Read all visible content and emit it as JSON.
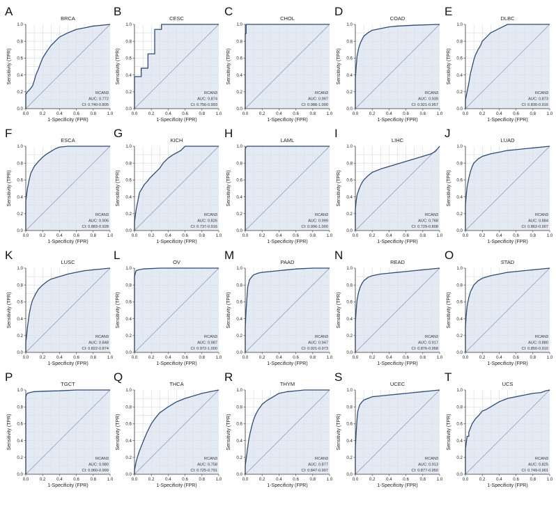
{
  "figure": {
    "x_label": "1-Specificity (FPR)",
    "y_label": "Sensitivity (TPR)",
    "gene": "RCAN3",
    "colors": {
      "fill": "#d9e2ee",
      "curve": "#2d4b73",
      "diagonal": "#9aaabd",
      "grid": "#c3cdd9",
      "axis": "#333333"
    }
  },
  "chart_data": [
    {
      "letter": "A",
      "title": "BRCA",
      "type": "line",
      "xlabel": "1-Specificity (FPR)",
      "ylabel": "Sensitivity (TPR)",
      "xlim": [
        0,
        1
      ],
      "ylim": [
        0,
        1
      ],
      "legend_label": "RCAN3",
      "auc": "AUC: 0.772",
      "ci": "CI: 0.740-0.805",
      "x": [
        0,
        0,
        0.02,
        0.05,
        0.08,
        0.1,
        0.12,
        0.15,
        0.18,
        0.2,
        0.25,
        0.3,
        0.35,
        0.4,
        0.5,
        0.6,
        0.7,
        0.8,
        0.9,
        1
      ],
      "y": [
        0,
        0.17,
        0.2,
        0.23,
        0.27,
        0.33,
        0.4,
        0.47,
        0.55,
        0.6,
        0.68,
        0.75,
        0.8,
        0.85,
        0.9,
        0.94,
        0.96,
        0.98,
        0.99,
        1
      ]
    },
    {
      "letter": "B",
      "title": "CESC",
      "type": "line",
      "xlabel": "1-Specificity (FPR)",
      "ylabel": "Sensitivity (TPR)",
      "xlim": [
        0,
        1
      ],
      "ylim": [
        0,
        1
      ],
      "legend_label": "RCAN3",
      "auc": "AUC: 0.874",
      "ci": "CI: 0.756-0.993",
      "x": [
        0,
        0,
        0.08,
        0.08,
        0.16,
        0.16,
        0.24,
        0.24,
        0.32,
        0.32,
        1
      ],
      "y": [
        0,
        0.38,
        0.38,
        0.48,
        0.48,
        0.65,
        0.65,
        0.94,
        0.94,
        1,
        1
      ]
    },
    {
      "letter": "C",
      "title": "CHOL",
      "type": "line",
      "xlabel": "1-Specificity (FPR)",
      "ylabel": "Sensitivity (TPR)",
      "xlim": [
        0,
        1
      ],
      "ylim": [
        0,
        1
      ],
      "legend_label": "RCAN3",
      "auc": "AUC: 0.997",
      "ci": "CI: 0.988-1.000",
      "x": [
        0,
        0,
        0.01,
        0.01,
        1
      ],
      "y": [
        0,
        0.89,
        0.89,
        1,
        1
      ]
    },
    {
      "letter": "D",
      "title": "COAD",
      "type": "line",
      "xlabel": "1-Specificity (FPR)",
      "ylabel": "Sensitivity (TPR)",
      "xlim": [
        0,
        1
      ],
      "ylim": [
        0,
        1
      ],
      "legend_label": "RCAN3",
      "auc": "AUC: 0.939",
      "ci": "CI: 0.921-0.957",
      "x": [
        0,
        0,
        0.01,
        0.02,
        0.04,
        0.06,
        0.08,
        0.1,
        0.15,
        0.2,
        0.3,
        0.4,
        0.5,
        0.7,
        1
      ],
      "y": [
        0,
        0.35,
        0.5,
        0.62,
        0.72,
        0.78,
        0.82,
        0.86,
        0.9,
        0.93,
        0.95,
        0.97,
        0.98,
        0.99,
        1
      ]
    },
    {
      "letter": "E",
      "title": "DLBC",
      "type": "line",
      "xlabel": "1-Specificity (FPR)",
      "ylabel": "Sensitivity (TPR)",
      "xlim": [
        0,
        1
      ],
      "ylim": [
        0,
        1
      ],
      "legend_label": "RCAN3",
      "auc": "AUC: 0.873",
      "ci": "CI: 0.830-0.916",
      "x": [
        0,
        0,
        0.02,
        0.04,
        0.06,
        0.08,
        0.1,
        0.12,
        0.15,
        0.18,
        0.2,
        0.25,
        0.3,
        0.4,
        0.5,
        0.6,
        0.8,
        1
      ],
      "y": [
        0,
        0.1,
        0.2,
        0.3,
        0.42,
        0.5,
        0.58,
        0.64,
        0.7,
        0.75,
        0.8,
        0.85,
        0.9,
        0.95,
        1,
        1,
        1,
        1
      ]
    },
    {
      "letter": "F",
      "title": "ESCA",
      "type": "line",
      "xlabel": "1-Specificity (FPR)",
      "ylabel": "Sensitivity (TPR)",
      "xlim": [
        0,
        1
      ],
      "ylim": [
        0,
        1
      ],
      "legend_label": "RCAN3",
      "auc": "AUC: 0.906",
      "ci": "CI: 0.883-0.928",
      "x": [
        0,
        0,
        0.02,
        0.04,
        0.06,
        0.08,
        0.1,
        0.15,
        0.2,
        0.25,
        0.3,
        0.35,
        0.4,
        0.5,
        0.7,
        1
      ],
      "y": [
        0,
        0.35,
        0.5,
        0.6,
        0.68,
        0.72,
        0.76,
        0.82,
        0.87,
        0.91,
        0.94,
        0.97,
        0.99,
        1,
        1,
        1
      ]
    },
    {
      "letter": "G",
      "title": "KICH",
      "type": "line",
      "xlabel": "1-Specificity (FPR)",
      "ylabel": "Sensitivity (TPR)",
      "xlim": [
        0,
        1
      ],
      "ylim": [
        0,
        1
      ],
      "legend_label": "RCAN3",
      "auc": "AUC: 0.826",
      "ci": "CI: 0.737-0.916",
      "x": [
        0,
        0,
        0.02,
        0.04,
        0.06,
        0.09,
        0.12,
        0.15,
        0.18,
        0.22,
        0.26,
        0.3,
        0.34,
        0.4,
        0.46,
        0.55,
        0.6,
        0.7,
        1
      ],
      "y": [
        0,
        0.1,
        0.25,
        0.35,
        0.45,
        0.5,
        0.55,
        0.58,
        0.62,
        0.66,
        0.7,
        0.74,
        0.8,
        0.86,
        0.9,
        0.95,
        1,
        1,
        1
      ]
    },
    {
      "letter": "H",
      "title": "LAML",
      "type": "line",
      "xlabel": "1-Specificity (FPR)",
      "ylabel": "Sensitivity (TPR)",
      "xlim": [
        0,
        1
      ],
      "ylim": [
        0,
        1
      ],
      "legend_label": "RCAN3",
      "auc": "AUC: 0.999",
      "ci": "CI: 0.996-1.000",
      "x": [
        0,
        0,
        0.01,
        0.02,
        1
      ],
      "y": [
        0,
        0.97,
        0.99,
        1,
        1
      ]
    },
    {
      "letter": "I",
      "title": "LIHC",
      "type": "line",
      "xlabel": "1-Specificity (FPR)",
      "ylabel": "Sensitivity (TPR)",
      "xlim": [
        0,
        1
      ],
      "ylim": [
        0,
        1
      ],
      "legend_label": "RCAN3",
      "auc": "AUC: 0.768",
      "ci": "CI: 0.729-0.808",
      "x": [
        0,
        0,
        0.01,
        0.02,
        0.04,
        0.06,
        0.08,
        0.1,
        0.15,
        0.2,
        0.3,
        0.4,
        0.5,
        0.6,
        0.7,
        0.8,
        0.9,
        0.95,
        1
      ],
      "y": [
        0,
        0.25,
        0.35,
        0.42,
        0.48,
        0.53,
        0.57,
        0.6,
        0.65,
        0.69,
        0.73,
        0.76,
        0.79,
        0.82,
        0.85,
        0.88,
        0.91,
        0.94,
        1
      ]
    },
    {
      "letter": "J",
      "title": "LUAD",
      "type": "line",
      "xlabel": "1-Specificity (FPR)",
      "ylabel": "Sensitivity (TPR)",
      "xlim": [
        0,
        1
      ],
      "ylim": [
        0,
        1
      ],
      "legend_label": "RCAN3",
      "auc": "AUC: 0.884",
      "ci": "CI: 0.862-0.907",
      "x": [
        0,
        0,
        0.01,
        0.02,
        0.04,
        0.06,
        0.08,
        0.1,
        0.15,
        0.2,
        0.3,
        0.4,
        0.5,
        0.6,
        0.7,
        0.8,
        1
      ],
      "y": [
        0,
        0.3,
        0.42,
        0.52,
        0.62,
        0.7,
        0.76,
        0.8,
        0.85,
        0.88,
        0.91,
        0.93,
        0.95,
        0.96,
        0.97,
        0.98,
        1
      ]
    },
    {
      "letter": "K",
      "title": "LUSC",
      "type": "line",
      "xlabel": "1-Specificity (FPR)",
      "ylabel": "Sensitivity (TPR)",
      "xlim": [
        0,
        1
      ],
      "ylim": [
        0,
        1
      ],
      "legend_label": "RCAN3",
      "auc": "AUC: 0.848",
      "ci": "CI: 0.822-0.874",
      "x": [
        0,
        0,
        0.01,
        0.02,
        0.04,
        0.06,
        0.08,
        0.1,
        0.12,
        0.15,
        0.2,
        0.25,
        0.3,
        0.4,
        0.5,
        0.6,
        0.7,
        0.8,
        0.9,
        1
      ],
      "y": [
        0,
        0.12,
        0.2,
        0.3,
        0.45,
        0.55,
        0.62,
        0.66,
        0.7,
        0.75,
        0.8,
        0.84,
        0.87,
        0.9,
        0.93,
        0.95,
        0.97,
        0.98,
        0.99,
        1
      ]
    },
    {
      "letter": "L",
      "title": "OV",
      "type": "line",
      "xlabel": "1-Specificity (FPR)",
      "ylabel": "Sensitivity (TPR)",
      "xlim": [
        0,
        1
      ],
      "ylim": [
        0,
        1
      ],
      "legend_label": "RCAN3",
      "auc": "AUC: 0.987",
      "ci": "CI: 0.972-1.000",
      "x": [
        0,
        0,
        0.01,
        0.02,
        0.05,
        0.1,
        0.3,
        1
      ],
      "y": [
        0,
        0.9,
        0.94,
        0.97,
        0.98,
        0.99,
        1,
        1
      ]
    },
    {
      "letter": "M",
      "title": "PAAD",
      "type": "line",
      "xlabel": "1-Specificity (FPR)",
      "ylabel": "Sensitivity (TPR)",
      "xlim": [
        0,
        1
      ],
      "ylim": [
        0,
        1
      ],
      "legend_label": "RCAN3",
      "auc": "AUC: 0.947",
      "ci": "CI: 0.921-0.973",
      "x": [
        0,
        0,
        0.01,
        0.02,
        0.03,
        0.05,
        0.08,
        0.1,
        0.15,
        0.2,
        0.3,
        0.4,
        0.5,
        0.6,
        0.8,
        1
      ],
      "y": [
        0,
        0.3,
        0.5,
        0.65,
        0.78,
        0.86,
        0.9,
        0.92,
        0.94,
        0.95,
        0.96,
        0.97,
        0.98,
        0.99,
        1,
        1
      ]
    },
    {
      "letter": "N",
      "title": "READ",
      "type": "line",
      "xlabel": "1-Specificity (FPR)",
      "ylabel": "Sensitivity (TPR)",
      "xlim": [
        0,
        1
      ],
      "ylim": [
        0,
        1
      ],
      "legend_label": "RCAN3",
      "auc": "AUC: 0.917",
      "ci": "CI: 0.876-0.958",
      "x": [
        0,
        0,
        0.01,
        0.02,
        0.04,
        0.06,
        0.08,
        0.1,
        0.15,
        0.2,
        0.3,
        0.4,
        0.5,
        0.6,
        0.7,
        0.8,
        0.9,
        1
      ],
      "y": [
        0,
        0.35,
        0.5,
        0.62,
        0.72,
        0.78,
        0.82,
        0.85,
        0.89,
        0.91,
        0.93,
        0.94,
        0.95,
        0.96,
        0.97,
        0.98,
        0.99,
        1
      ]
    },
    {
      "letter": "O",
      "title": "STAD",
      "type": "line",
      "xlabel": "1-Specificity (FPR)",
      "ylabel": "Sensitivity (TPR)",
      "xlim": [
        0,
        1
      ],
      "ylim": [
        0,
        1
      ],
      "legend_label": "RCAN3",
      "auc": "AUC: 0.880",
      "ci": "CI: 0.850-0.910",
      "x": [
        0,
        0,
        0.01,
        0.02,
        0.04,
        0.06,
        0.08,
        0.1,
        0.15,
        0.2,
        0.3,
        0.4,
        0.5,
        0.6,
        0.7,
        0.8,
        0.9,
        1
      ],
      "y": [
        0,
        0.3,
        0.45,
        0.55,
        0.65,
        0.72,
        0.76,
        0.8,
        0.85,
        0.88,
        0.91,
        0.93,
        0.95,
        0.96,
        0.97,
        0.98,
        0.99,
        1
      ]
    },
    {
      "letter": "P",
      "title": "TGCT",
      "type": "line",
      "xlabel": "1-Specificity (FPR)",
      "ylabel": "Sensitivity (TPR)",
      "xlim": [
        0,
        1
      ],
      "ylim": [
        0,
        1
      ],
      "legend_label": "RCAN3",
      "auc": "AUC: 0.980",
      "ci": "CI: 0.960-0.999",
      "x": [
        0,
        0,
        0.01,
        0.02,
        0.05,
        0.1,
        0.2,
        0.4,
        0.6,
        1
      ],
      "y": [
        0,
        0.92,
        0.95,
        0.96,
        0.97,
        0.98,
        0.985,
        0.99,
        1,
        1
      ]
    },
    {
      "letter": "Q",
      "title": "THCA",
      "type": "line",
      "xlabel": "1-Specificity (FPR)",
      "ylabel": "Sensitivity (TPR)",
      "xlim": [
        0,
        1
      ],
      "ylim": [
        0,
        1
      ],
      "legend_label": "RCAN3",
      "auc": "AUC: 0.758",
      "ci": "CI: 0.725-0.791",
      "x": [
        0,
        0,
        0.01,
        0.02,
        0.04,
        0.06,
        0.08,
        0.1,
        0.12,
        0.15,
        0.2,
        0.25,
        0.3,
        0.4,
        0.5,
        0.6,
        0.7,
        0.8,
        0.9,
        1
      ],
      "y": [
        0,
        0.05,
        0.1,
        0.15,
        0.22,
        0.28,
        0.33,
        0.38,
        0.43,
        0.5,
        0.6,
        0.67,
        0.73,
        0.8,
        0.86,
        0.9,
        0.93,
        0.96,
        0.98,
        1
      ]
    },
    {
      "letter": "R",
      "title": "THYM",
      "type": "line",
      "xlabel": "1-Specificity (FPR)",
      "ylabel": "Sensitivity (TPR)",
      "xlim": [
        0,
        1
      ],
      "ylim": [
        0,
        1
      ],
      "legend_label": "RCAN3",
      "auc": "AUC: 0.877",
      "ci": "CI: 0.847-0.907",
      "x": [
        0,
        0,
        0.02,
        0.04,
        0.06,
        0.08,
        0.1,
        0.12,
        0.15,
        0.18,
        0.2,
        0.25,
        0.3,
        0.35,
        0.4,
        0.5,
        0.6,
        0.7,
        1
      ],
      "y": [
        0,
        0.1,
        0.25,
        0.4,
        0.5,
        0.58,
        0.65,
        0.7,
        0.76,
        0.8,
        0.83,
        0.87,
        0.9,
        0.93,
        0.96,
        0.98,
        0.99,
        1,
        1
      ]
    },
    {
      "letter": "S",
      "title": "UCEC",
      "type": "line",
      "xlabel": "1-Specificity (FPR)",
      "ylabel": "Sensitivity (TPR)",
      "xlim": [
        0,
        1
      ],
      "ylim": [
        0,
        1
      ],
      "legend_label": "RCAN3",
      "auc": "AUC: 0.913",
      "ci": "CI: 0.877-0.950",
      "x": [
        0,
        0,
        0.01,
        0.02,
        0.03,
        0.05,
        0.08,
        0.1,
        0.15,
        0.2,
        0.3,
        0.4,
        0.5,
        0.6,
        0.7,
        0.8,
        0.9,
        1
      ],
      "y": [
        0,
        0.3,
        0.5,
        0.65,
        0.75,
        0.82,
        0.86,
        0.88,
        0.9,
        0.92,
        0.93,
        0.94,
        0.95,
        0.96,
        0.97,
        0.98,
        0.99,
        1
      ]
    },
    {
      "letter": "T",
      "title": "UCS",
      "type": "line",
      "xlabel": "1-Specificity (FPR)",
      "ylabel": "Sensitivity (TPR)",
      "xlim": [
        0,
        1
      ],
      "ylim": [
        0,
        1
      ],
      "legend_label": "RCAN3",
      "auc": "AUC: 0.825",
      "ci": "CI: 0.749-0.901",
      "x": [
        0,
        0,
        0.02,
        0.04,
        0.04,
        0.06,
        0.08,
        0.1,
        0.12,
        0.16,
        0.2,
        0.25,
        0.3,
        0.35,
        0.4,
        0.45,
        0.5,
        0.6,
        0.7,
        0.8,
        0.9,
        0.95,
        1
      ],
      "y": [
        0,
        0.3,
        0.45,
        0.45,
        0.5,
        0.55,
        0.6,
        0.63,
        0.66,
        0.7,
        0.75,
        0.77,
        0.8,
        0.83,
        0.86,
        0.88,
        0.9,
        0.92,
        0.94,
        0.96,
        0.97,
        0.99,
        1
      ]
    }
  ]
}
